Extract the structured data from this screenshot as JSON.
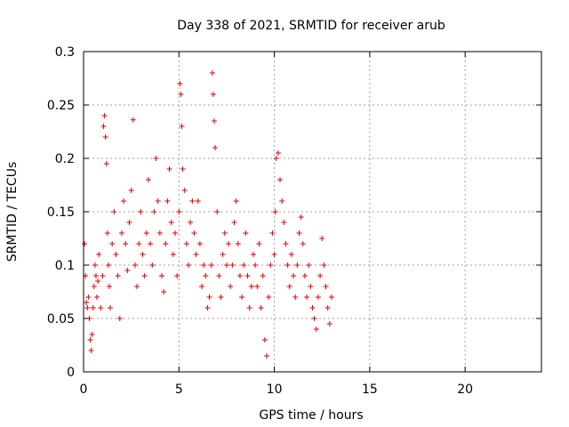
{
  "chart_data": {
    "type": "scatter",
    "title": "Day 338 of 2021, SRMTID for receiver arub",
    "xlabel": "GPS time / hours",
    "ylabel": "SRMTID / TECUs",
    "xlim": [
      0,
      24
    ],
    "ylim": [
      0,
      0.3
    ],
    "x_ticks": [
      0,
      5,
      10,
      15,
      20
    ],
    "x_tick_labels": [
      "0",
      "5",
      "10",
      "15",
      "20"
    ],
    "y_ticks": [
      0,
      0.05,
      0.1,
      0.15,
      0.2,
      0.25,
      0.3
    ],
    "y_tick_labels": [
      "0",
      "0.05",
      "0.1",
      "0.15",
      "0.2",
      "0.25",
      "0.3"
    ],
    "grid": true,
    "marker": "+",
    "series": [
      {
        "name": "arub",
        "color": "#dd0000",
        "x": [
          0.05,
          0.1,
          0.15,
          0.2,
          0.25,
          0.3,
          0.35,
          0.4,
          0.45,
          0.5,
          0.55,
          0.6,
          0.65,
          0.7,
          0.75,
          0.8,
          0.9,
          1.0,
          1.05,
          1.1,
          1.15,
          1.2,
          1.25,
          1.3,
          1.35,
          1.4,
          1.5,
          1.6,
          1.7,
          1.8,
          1.9,
          2.0,
          2.1,
          2.2,
          2.3,
          2.4,
          2.5,
          2.6,
          2.7,
          2.8,
          2.9,
          3.0,
          3.1,
          3.2,
          3.3,
          3.4,
          3.5,
          3.6,
          3.7,
          3.8,
          3.9,
          4.0,
          4.1,
          4.2,
          4.3,
          4.4,
          4.5,
          4.6,
          4.7,
          4.8,
          4.9,
          5.0,
          5.05,
          5.1,
          5.15,
          5.2,
          5.3,
          5.4,
          5.5,
          5.6,
          5.7,
          5.8,
          5.9,
          6.0,
          6.1,
          6.2,
          6.3,
          6.4,
          6.5,
          6.6,
          6.7,
          6.75,
          6.8,
          6.85,
          6.9,
          7.0,
          7.1,
          7.2,
          7.3,
          7.4,
          7.5,
          7.6,
          7.7,
          7.8,
          7.9,
          8.0,
          8.1,
          8.2,
          8.3,
          8.4,
          8.5,
          8.6,
          8.7,
          8.8,
          8.9,
          9.0,
          9.1,
          9.2,
          9.3,
          9.4,
          9.5,
          9.6,
          9.7,
          9.8,
          9.9,
          10.0,
          10.05,
          10.1,
          10.2,
          10.3,
          10.4,
          10.5,
          10.6,
          10.7,
          10.8,
          10.9,
          11.0,
          11.1,
          11.2,
          11.3,
          11.4,
          11.5,
          11.6,
          11.7,
          11.8,
          11.9,
          12.0,
          12.1,
          12.2,
          12.3,
          12.4,
          12.5,
          12.6,
          12.7,
          12.8,
          12.9,
          13.0
        ],
        "y": [
          0.12,
          0.09,
          0.065,
          0.06,
          0.07,
          0.05,
          0.03,
          0.02,
          0.035,
          0.06,
          0.08,
          0.1,
          0.09,
          0.07,
          0.085,
          0.11,
          0.06,
          0.09,
          0.23,
          0.24,
          0.22,
          0.195,
          0.13,
          0.1,
          0.08,
          0.06,
          0.12,
          0.15,
          0.11,
          0.09,
          0.05,
          0.13,
          0.16,
          0.12,
          0.095,
          0.14,
          0.17,
          0.236,
          0.1,
          0.08,
          0.12,
          0.15,
          0.11,
          0.09,
          0.13,
          0.18,
          0.12,
          0.1,
          0.15,
          0.2,
          0.16,
          0.13,
          0.09,
          0.075,
          0.12,
          0.16,
          0.19,
          0.14,
          0.11,
          0.13,
          0.09,
          0.15,
          0.27,
          0.26,
          0.23,
          0.19,
          0.17,
          0.12,
          0.1,
          0.14,
          0.16,
          0.13,
          0.11,
          0.16,
          0.12,
          0.08,
          0.1,
          0.09,
          0.06,
          0.07,
          0.1,
          0.28,
          0.26,
          0.235,
          0.21,
          0.15,
          0.09,
          0.07,
          0.11,
          0.13,
          0.1,
          0.12,
          0.08,
          0.1,
          0.14,
          0.16,
          0.12,
          0.09,
          0.07,
          0.1,
          0.13,
          0.09,
          0.06,
          0.08,
          0.11,
          0.1,
          0.08,
          0.12,
          0.06,
          0.09,
          0.03,
          0.015,
          0.07,
          0.1,
          0.13,
          0.11,
          0.15,
          0.2,
          0.205,
          0.18,
          0.16,
          0.14,
          0.12,
          0.1,
          0.08,
          0.11,
          0.09,
          0.07,
          0.1,
          0.13,
          0.145,
          0.12,
          0.09,
          0.07,
          0.1,
          0.08,
          0.06,
          0.05,
          0.04,
          0.07,
          0.09,
          0.125,
          0.1,
          0.08,
          0.06,
          0.045,
          0.07
        ]
      }
    ]
  }
}
